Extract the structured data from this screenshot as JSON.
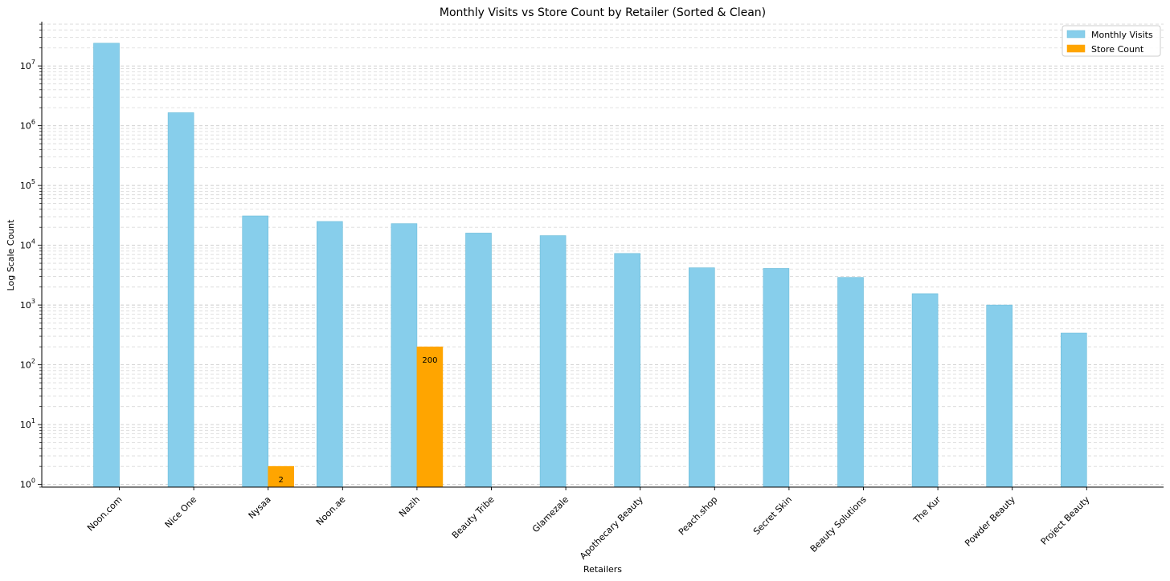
{
  "chart_data": {
    "type": "bar",
    "title": "Monthly Visits vs Store Count by Retailer (Sorted & Clean)",
    "xlabel": "Retailers",
    "ylabel": "Log Scale Count",
    "yscale": "log",
    "ylim": [
      0.9,
      55000000
    ],
    "y_ticks": [
      {
        "value": 1,
        "base": "10",
        "exp": "0"
      },
      {
        "value": 10,
        "base": "10",
        "exp": "1"
      },
      {
        "value": 100,
        "base": "10",
        "exp": "2"
      },
      {
        "value": 1000,
        "base": "10",
        "exp": "3"
      },
      {
        "value": 10000,
        "base": "10",
        "exp": "4"
      },
      {
        "value": 100000,
        "base": "10",
        "exp": "5"
      },
      {
        "value": 1000000,
        "base": "10",
        "exp": "6"
      },
      {
        "value": 10000000,
        "base": "10",
        "exp": "7"
      }
    ],
    "grid": true,
    "legend_position": "top-right",
    "categories": [
      "Noon.com",
      "Nice One",
      "Nysaa",
      "Noon.ae",
      "Nazih",
      "Beauty Tribe",
      "Glamezale",
      "Apothecary Beauty",
      "Peach.shop",
      "Secret Skin",
      "Beauty Solutions",
      "The Kur",
      "Powder Beauty",
      "Project Beauty"
    ],
    "series": [
      {
        "name": "Monthly Visits",
        "color": "#87ceeb",
        "edge_color": "#6bbcd9",
        "values": [
          24000000,
          1650000,
          31000,
          25000,
          23000,
          16000,
          14500,
          7300,
          4200,
          4100,
          2900,
          1550,
          1000,
          340
        ]
      },
      {
        "name": "Store Count",
        "color": "#ffa500",
        "edge_color": "#ffa500",
        "values": [
          null,
          null,
          2,
          null,
          200,
          null,
          null,
          null,
          null,
          null,
          null,
          null,
          null,
          null
        ]
      }
    ],
    "data_labels": [
      {
        "category": "Nysaa",
        "series": "Store Count",
        "text": "2"
      },
      {
        "category": "Nazih",
        "series": "Store Count",
        "text": "200"
      }
    ]
  }
}
